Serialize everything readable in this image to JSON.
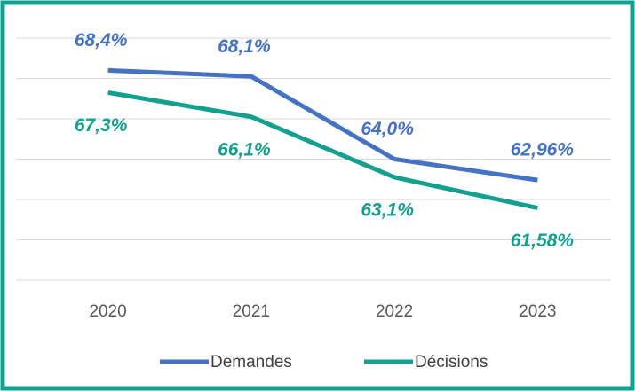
{
  "chart_data": {
    "type": "line",
    "categories": [
      "2020",
      "2021",
      "2022",
      "2023"
    ],
    "series": [
      {
        "name": "Demandes",
        "color": "#4472c4",
        "values": [
          68.4,
          68.1,
          64.0,
          62.96
        ],
        "value_labels": [
          "68,4%",
          "68,1%",
          "64,0%",
          "62,96%"
        ]
      },
      {
        "name": "Décisions",
        "color": "#12a08f",
        "values": [
          67.3,
          66.1,
          63.1,
          61.58
        ],
        "value_labels": [
          "67,3%",
          "66,1%",
          "63,1%",
          "61,58%"
        ]
      }
    ],
    "ylim": [
      58,
      70
    ],
    "yticks": [
      58,
      60,
      62,
      64,
      66,
      68,
      70
    ],
    "grid": true,
    "legend": "bottom"
  }
}
